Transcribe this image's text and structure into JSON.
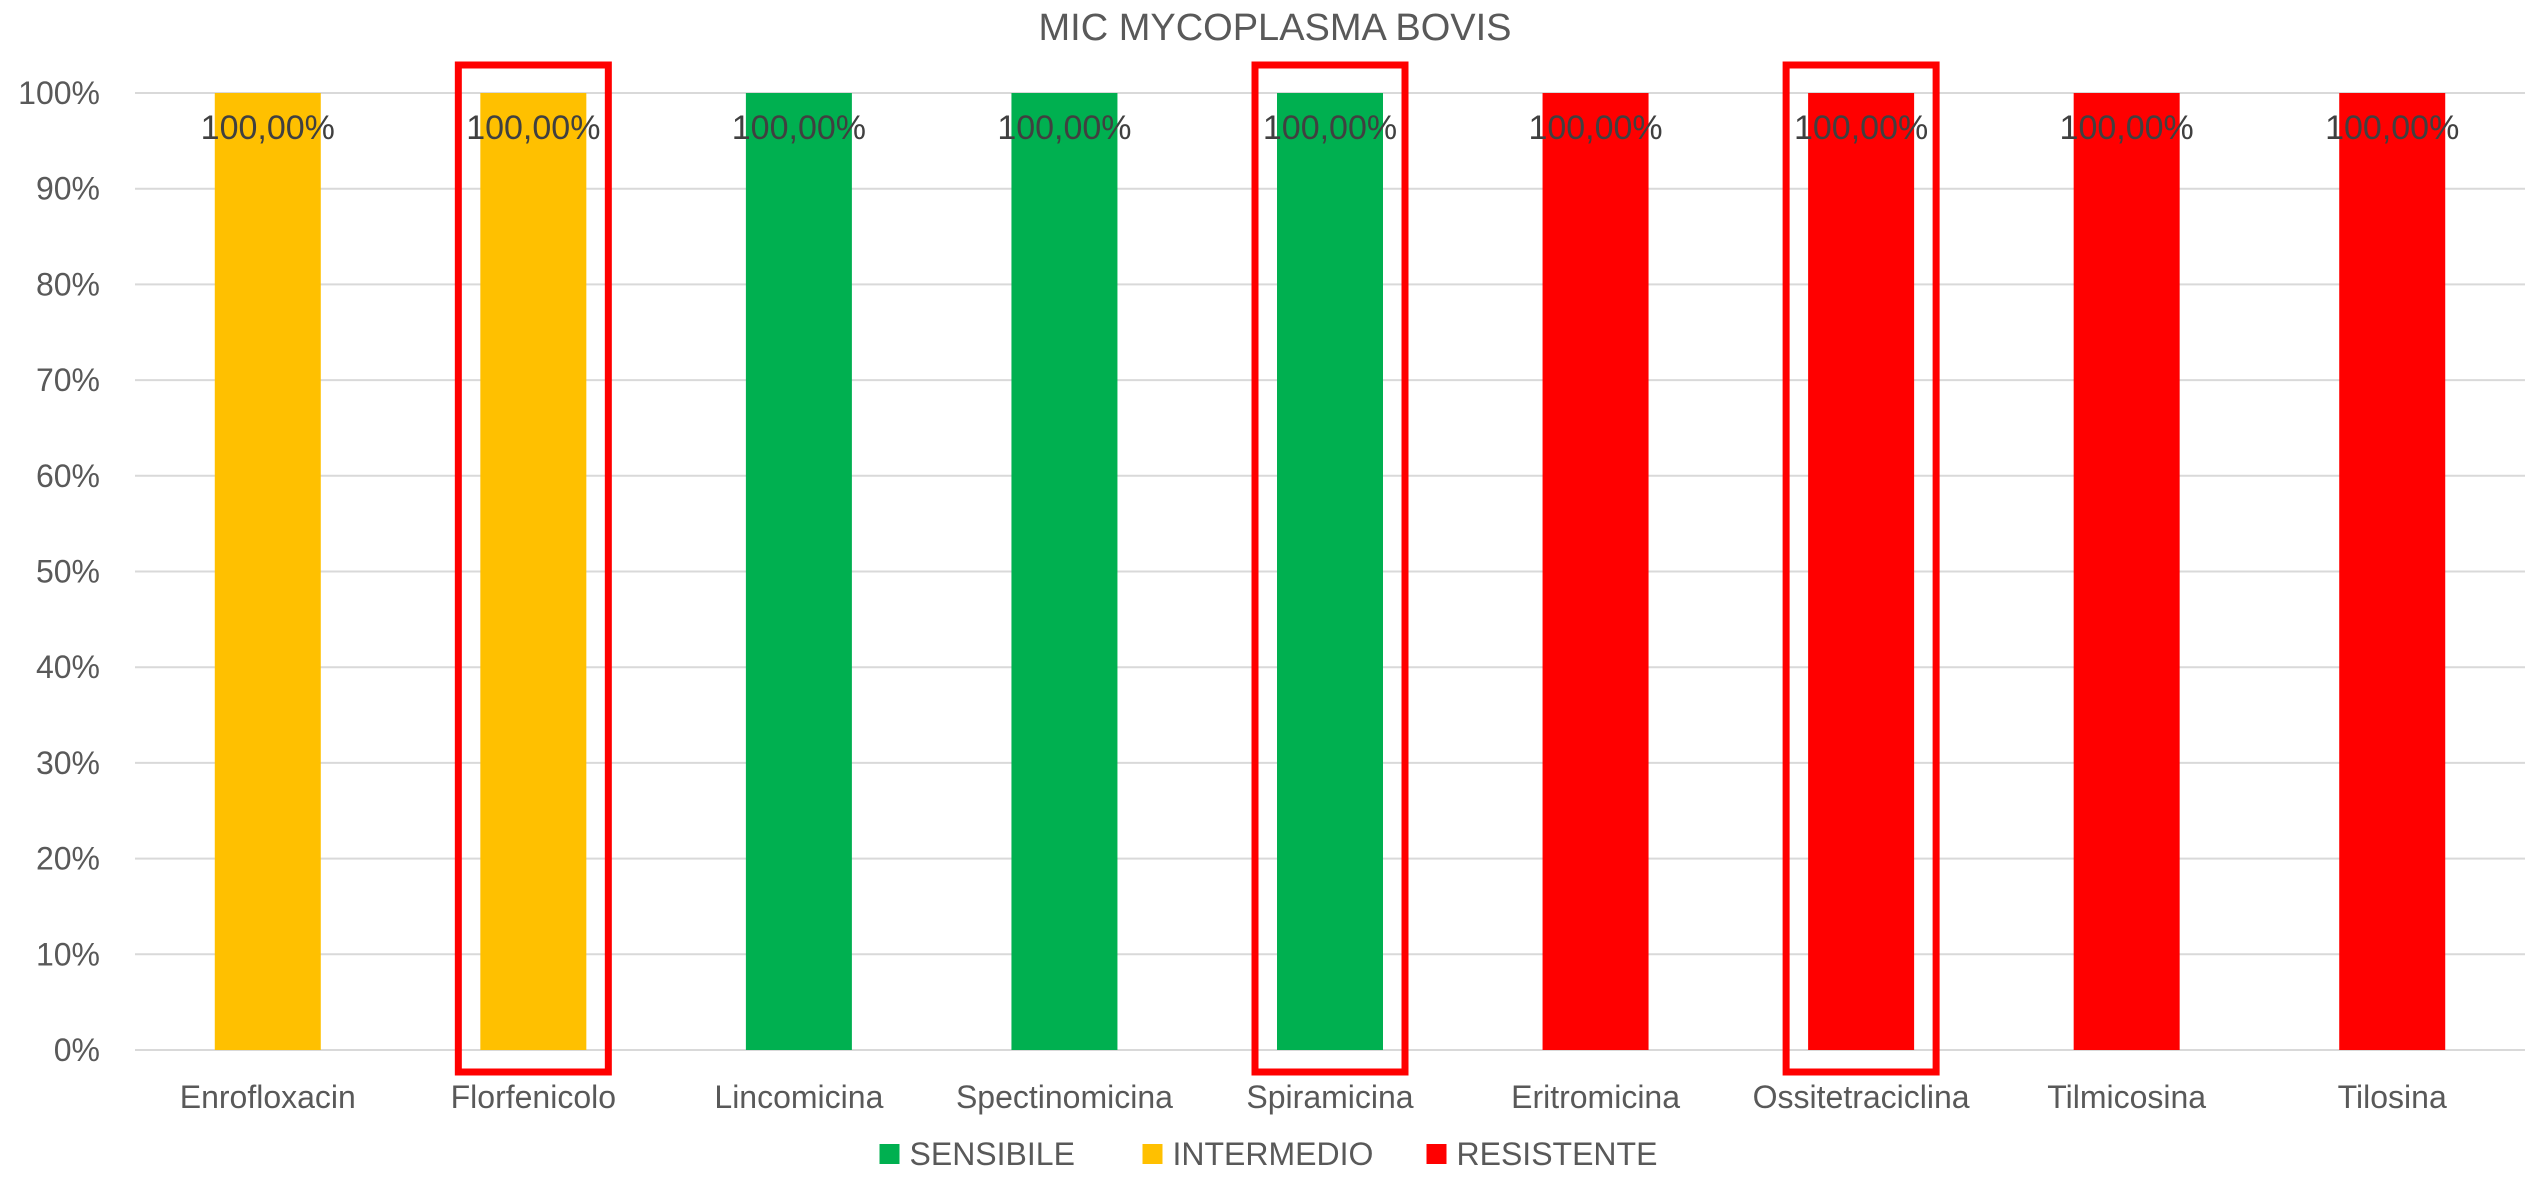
{
  "chart_data": {
    "type": "bar",
    "title": "MIC MYCOPLASMA BOVIS",
    "xlabel": "",
    "ylabel": "",
    "ylim": [
      0,
      100
    ],
    "y_ticks": [
      "0%",
      "10%",
      "20%",
      "30%",
      "40%",
      "50%",
      "60%",
      "70%",
      "80%",
      "90%",
      "100%"
    ],
    "grid": true,
    "legend_position": "bottom",
    "categories": [
      "Enrofloxacin",
      "Florfenicolo",
      "Lincomicina",
      "Spectinomicina",
      "Spiramicina",
      "Eritromicina",
      "Ossitetraciclina",
      "Tilmicosina",
      "Tilosina"
    ],
    "values": [
      100,
      100,
      100,
      100,
      100,
      100,
      100,
      100,
      100
    ],
    "data_labels": [
      "100,00%",
      "100,00%",
      "100,00%",
      "100,00%",
      "100,00%",
      "100,00%",
      "100,00%",
      "100,00%",
      "100,00%"
    ],
    "bar_class": [
      "INTERMEDIO",
      "INTERMEDIO",
      "SENSIBILE",
      "SENSIBILE",
      "SENSIBILE",
      "RESISTENTE",
      "RESISTENTE",
      "RESISTENTE",
      "RESISTENTE"
    ],
    "highlighted": [
      "Florfenicolo",
      "Spiramicina",
      "Ossitetraciclina"
    ],
    "legend": [
      {
        "name": "SENSIBILE",
        "color": "#00b050"
      },
      {
        "name": "INTERMEDIO",
        "color": "#ffc000"
      },
      {
        "name": "RESISTENTE",
        "color": "#ff0000"
      }
    ],
    "highlight_color": "#ff0000"
  }
}
